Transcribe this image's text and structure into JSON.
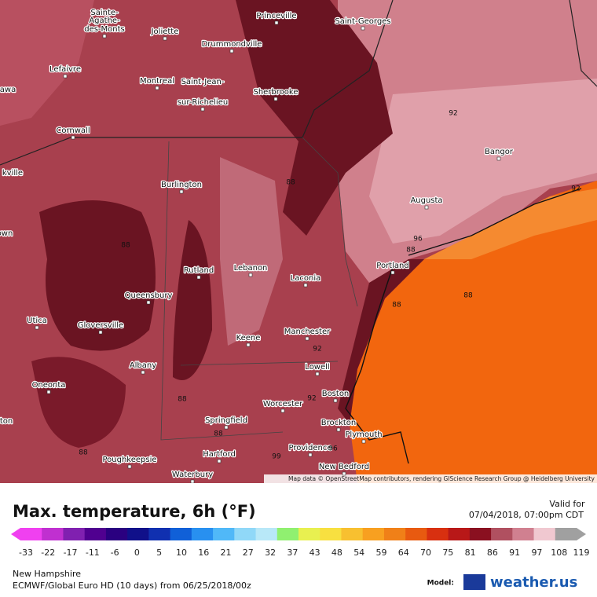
{
  "map": {
    "cities": [
      "Sainte-",
      "Agathe-",
      "des-Monts",
      "Joliette",
      "Drummondville",
      "Princeville",
      "Saint-Georges",
      "Lefaivre",
      "awa",
      "Montreal",
      "Saint-Jean-",
      "sur-Richelieu",
      "Sherbrooke",
      "Cornwall",
      "kville",
      "Bangor",
      "Augusta",
      "Burlington",
      "own",
      "Rutland",
      "Lebanon",
      "Laconia",
      "Portland",
      "Queensbury",
      "Utica",
      "Gloversville",
      "Keene",
      "Manchester",
      "Albany",
      "Lowell",
      "Oneonta",
      "Boston",
      "Worcester",
      "ton",
      "Springfield",
      "Brockton",
      "Plymouth",
      "Poughkeepsie",
      "Hartford",
      "Providence",
      "New Bedford",
      "Waterbury"
    ],
    "contour_labels": [
      "92",
      "88",
      "88",
      "96",
      "88",
      "88",
      "88",
      "92",
      "88",
      "92",
      "88",
      "88",
      "99",
      "96",
      "92"
    ],
    "attribution": "Map data © OpenStreetMap contributors, rendering GIScience Research Group @ Heidelberg University"
  },
  "legend": {
    "title": "Max. temperature, 6h (°F)",
    "valid_label": "Valid for",
    "valid_time": "07/04/2018, 07:00pm CDT",
    "ticks": [
      -33,
      -22,
      -17,
      -11,
      -6,
      0,
      5,
      10,
      16,
      21,
      27,
      32,
      37,
      43,
      48,
      54,
      59,
      64,
      70,
      75,
      81,
      86,
      91,
      97,
      108,
      119
    ],
    "colors": [
      "#f040f0",
      "#c030d0",
      "#8020b0",
      "#500090",
      "#2a0080",
      "#10108a",
      "#1030b0",
      "#1060d8",
      "#2890f0",
      "#50b8f8",
      "#90d8f8",
      "#b8e8f8",
      "#90f070",
      "#e8f050",
      "#f8e040",
      "#f8c030",
      "#f8a020",
      "#f08018",
      "#e85a10",
      "#d83010",
      "#b81818",
      "#8a1020",
      "#b05060",
      "#d08090",
      "#f0c8d0",
      "#a0a0a0"
    ],
    "region": "New Hampshire",
    "model_run": "ECMWF/Global Euro HD (10 days) from 06/25/2018/00z",
    "model_label": "Model:",
    "brand": "weather.us"
  }
}
